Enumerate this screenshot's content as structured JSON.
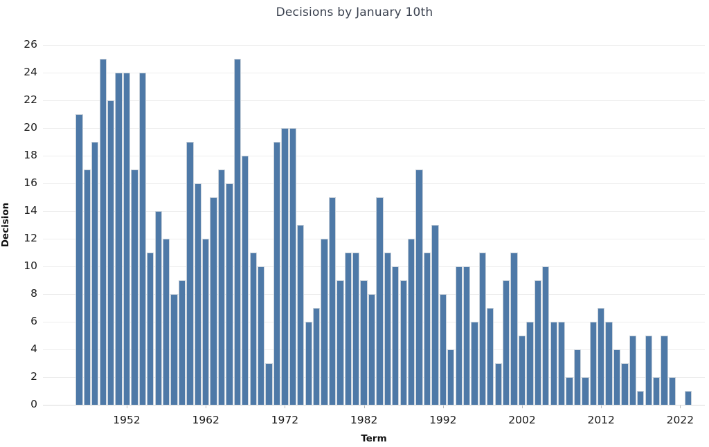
{
  "title": "Decisions by January 10th",
  "chart_data": {
    "type": "bar",
    "title": "Decisions by January 10th",
    "xlabel": "Term",
    "ylabel": "Decision",
    "x": [
      1946,
      1947,
      1948,
      1949,
      1950,
      1951,
      1952,
      1953,
      1954,
      1955,
      1956,
      1957,
      1958,
      1959,
      1960,
      1961,
      1962,
      1963,
      1964,
      1965,
      1966,
      1967,
      1968,
      1969,
      1970,
      1971,
      1972,
      1973,
      1974,
      1975,
      1976,
      1977,
      1978,
      1979,
      1980,
      1981,
      1982,
      1983,
      1984,
      1985,
      1986,
      1987,
      1988,
      1989,
      1990,
      1991,
      1992,
      1993,
      1994,
      1995,
      1996,
      1997,
      1998,
      1999,
      2000,
      2001,
      2002,
      2003,
      2004,
      2005,
      2006,
      2007,
      2008,
      2009,
      2010,
      2011,
      2012,
      2013,
      2014,
      2015,
      2016,
      2017,
      2018,
      2019,
      2020,
      2021,
      2022,
      2023
    ],
    "values": [
      21,
      17,
      19,
      25,
      22,
      24,
      24,
      17,
      24,
      11,
      14,
      12,
      8,
      9,
      19,
      16,
      12,
      15,
      17,
      16,
      25,
      18,
      11,
      10,
      3,
      19,
      20,
      20,
      13,
      6,
      7,
      12,
      15,
      9,
      11,
      11,
      9,
      8,
      15,
      11,
      10,
      9,
      12,
      17,
      11,
      13,
      8,
      4,
      10,
      10,
      6,
      11,
      7,
      3,
      9,
      11,
      5,
      6,
      9,
      10,
      6,
      6,
      2,
      4,
      2,
      6,
      7,
      6,
      4,
      3,
      5,
      1,
      5,
      2,
      5,
      2,
      0,
      1
    ],
    "ylim": [
      0,
      27
    ],
    "yticks": [
      0,
      2,
      4,
      6,
      8,
      10,
      12,
      14,
      16,
      18,
      20,
      22,
      24,
      26
    ],
    "xticks": [
      1952,
      1962,
      1972,
      1982,
      1992,
      2002,
      2012,
      2022
    ],
    "bar_color": "#4e79a7",
    "bar_edge_color": "#c9d2db",
    "grid_color": "#ececec",
    "axis_line_color": "#d9d9d9",
    "tick_label_color": "#1a1a1a",
    "title_color": "#39404e",
    "grid": "horizontal",
    "legend_position": "none"
  }
}
